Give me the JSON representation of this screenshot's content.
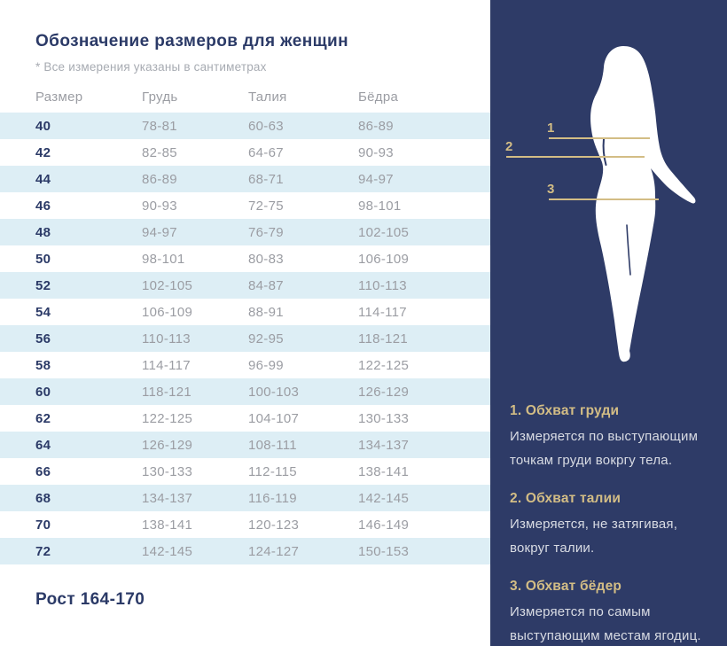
{
  "page": {
    "title": "Обозначение размеров для женщин",
    "subtitle": "* Все измерения указаны в сантиметрах",
    "footer": "Рост 164-170"
  },
  "table": {
    "columns": [
      "Размер",
      "Грудь",
      "Талия",
      "Бёдра"
    ],
    "rows": [
      [
        "40",
        "78-81",
        "60-63",
        "86-89"
      ],
      [
        "42",
        "82-85",
        "64-67",
        "90-93"
      ],
      [
        "44",
        "86-89",
        "68-71",
        "94-97"
      ],
      [
        "46",
        "90-93",
        "72-75",
        "98-101"
      ],
      [
        "48",
        "94-97",
        "76-79",
        "102-105"
      ],
      [
        "50",
        "98-101",
        "80-83",
        "106-109"
      ],
      [
        "52",
        "102-105",
        "84-87",
        "110-113"
      ],
      [
        "54",
        "106-109",
        "88-91",
        "114-117"
      ],
      [
        "56",
        "110-113",
        "92-95",
        "118-121"
      ],
      [
        "58",
        "114-117",
        "96-99",
        "122-125"
      ],
      [
        "60",
        "118-121",
        "100-103",
        "126-129"
      ],
      [
        "62",
        "122-125",
        "104-107",
        "130-133"
      ],
      [
        "64",
        "126-129",
        "108-111",
        "134-137"
      ],
      [
        "66",
        "130-133",
        "112-115",
        "138-141"
      ],
      [
        "68",
        "134-137",
        "116-119",
        "142-145"
      ],
      [
        "70",
        "138-141",
        "120-123",
        "146-149"
      ],
      [
        "72",
        "142-145",
        "124-127",
        "150-153"
      ]
    ]
  },
  "figure": {
    "markers": [
      {
        "label": "1"
      },
      {
        "label": "2"
      },
      {
        "label": "3"
      }
    ]
  },
  "legend": {
    "items": [
      {
        "title": "1. Обхват груди",
        "body": "Измеряется по  выступающим\nточкам груди вокргу тела."
      },
      {
        "title": "2. Обхват талии",
        "body": "Измеряется, не затягивая,\nвокруг талии."
      },
      {
        "title": "3. Обхват бёдер",
        "body": "Измеряется по самым\nвыступающим местам ягодиц."
      }
    ]
  },
  "colors": {
    "panel_navy": "#2e3b67",
    "accent_gold": "#d3bd85",
    "stripe_blue": "#ddeef5",
    "heading_navy": "#2b3a67",
    "value_gray": "#9b9da3"
  }
}
